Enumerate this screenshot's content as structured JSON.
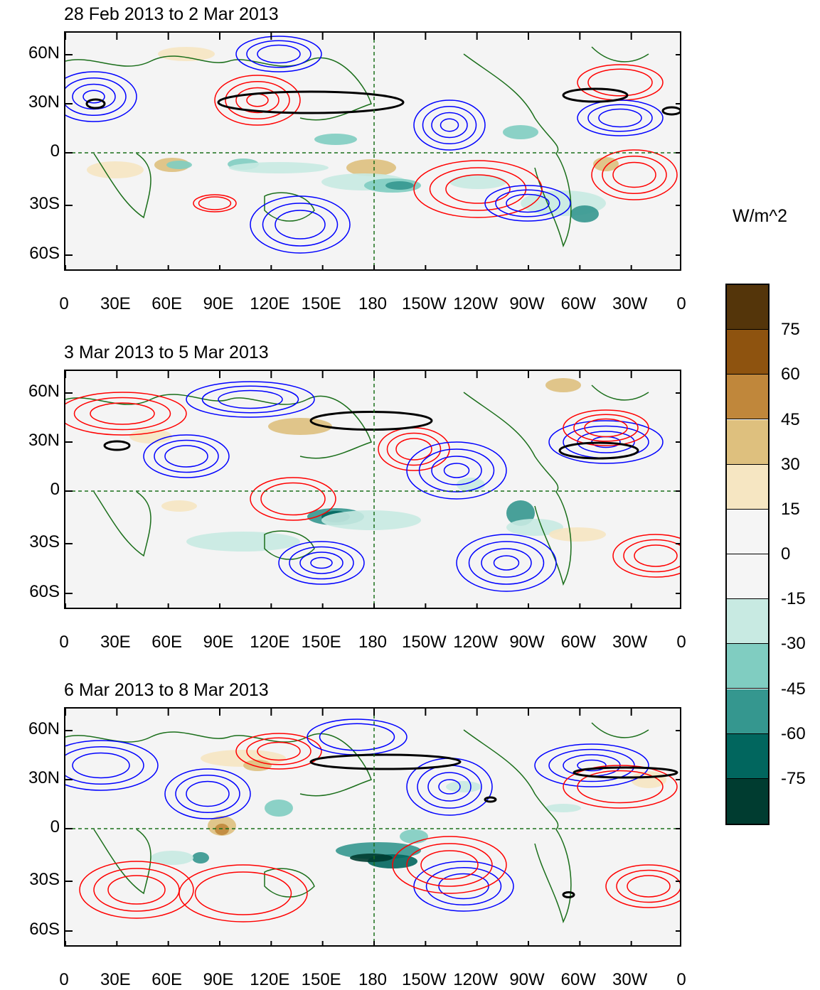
{
  "units_label": "W/m^2",
  "panels": [
    {
      "title": "28 Feb 2013 to 2 Mar 2013"
    },
    {
      "title": "3 Mar 2013 to 5 Mar 2013"
    },
    {
      "title": "6 Mar 2013 to 8 Mar 2013"
    }
  ],
  "lat_labels": [
    "60N",
    "30N",
    "0",
    "30S",
    "60S"
  ],
  "lon_labels": [
    "0",
    "30E",
    "60E",
    "90E",
    "120E",
    "150E",
    "180",
    "150W",
    "120W",
    "90W",
    "60W",
    "30W",
    "0"
  ],
  "colorbar": {
    "labels": [
      "75",
      "60",
      "45",
      "30",
      "15",
      "0",
      "-15",
      "-30",
      "-45",
      "-60",
      "-75"
    ],
    "colors": [
      "#54350a",
      "#8e530f",
      "#c0873b",
      "#dec07e",
      "#f6e6c2",
      "#f5f5f5",
      "#f5f5f5",
      "#c8eae2",
      "#80cdc1",
      "#35978f",
      "#01665e",
      "#003c30"
    ]
  },
  "line_colors": {
    "positive_contour": "#ff0000",
    "negative_contour": "#0000ff",
    "coast": "#1a6e1a",
    "jet": "#000000"
  }
}
